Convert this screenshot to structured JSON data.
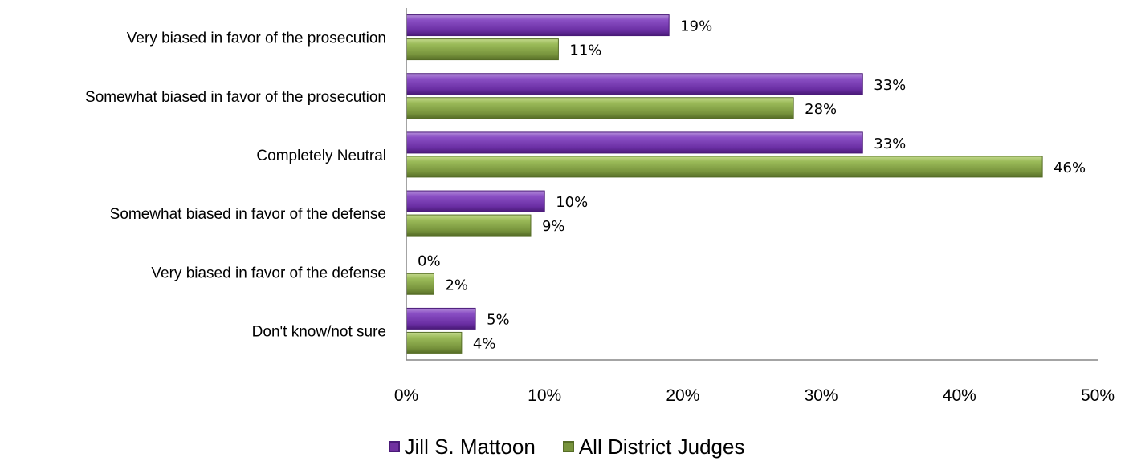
{
  "chart_data": {
    "type": "bar",
    "orientation": "horizontal",
    "categories": [
      "Very biased in favor of the prosecution",
      "Somewhat biased in favor of the prosecution",
      "Completely Neutral",
      "Somewhat biased in favor of the defense",
      "Very biased in favor of the defense",
      "Don't know/not sure"
    ],
    "series": [
      {
        "name": "Jill S. Mattoon",
        "values": [
          19,
          33,
          33,
          10,
          0,
          5
        ],
        "labels": [
          "19%",
          "33%",
          "33%",
          "10%",
          "0%",
          "5%"
        ],
        "color": "#7030a0"
      },
      {
        "name": "All District Judges",
        "values": [
          11,
          28,
          46,
          9,
          2,
          4
        ],
        "labels": [
          "11%",
          "28%",
          "46%",
          "9%",
          "2%",
          "4%"
        ],
        "color": "#77933c"
      }
    ],
    "xlim": [
      0,
      50
    ],
    "xticks": [
      "0%",
      "10%",
      "20%",
      "30%",
      "40%",
      "50%"
    ],
    "grid": false,
    "legend_position": "bottom"
  }
}
